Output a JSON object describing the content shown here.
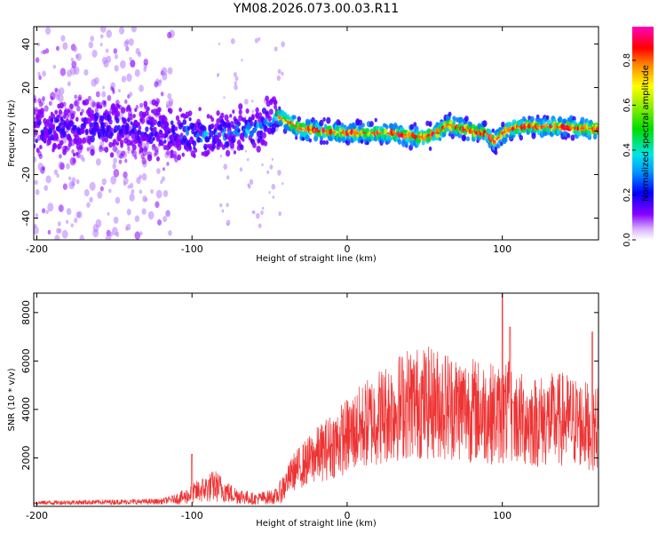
{
  "figure_title": "YM08.2026.073.00.03.R11",
  "colors": {
    "snr_line": "#ee3333",
    "axes": "#000000",
    "background": "#ffffff"
  },
  "chart_data": [
    {
      "type": "heatmap",
      "title": "YM08.2026.073.00.03.R11",
      "xlabel": "Height of straight line (km)",
      "ylabel": "Frequency (Hz)",
      "xlim": [
        -202,
        162
      ],
      "ylim": [
        -50,
        48
      ],
      "x_ticks": [
        -200,
        -100,
        0,
        100
      ],
      "y_ticks": [
        -40,
        -20,
        0,
        20,
        40
      ],
      "colorbar": {
        "label": "Normalized spectral amplitude",
        "range": [
          0.0,
          0.95
        ],
        "ticks": [
          "0.0",
          "0.2",
          "0.4",
          "0.6",
          "0.8"
        ],
        "colormap": "rainbow"
      },
      "ridge": {
        "description": "dominant frequency ridge",
        "x": [
          -200,
          -150,
          -110,
          -90,
          -60,
          -45,
          -40,
          -30,
          0,
          30,
          40,
          50,
          60,
          65,
          80,
          90,
          95,
          100,
          110,
          130,
          160
        ],
        "y": [
          1,
          2,
          -1,
          -2,
          1,
          7,
          5,
          1,
          -1,
          -1,
          -2,
          -3,
          0,
          3,
          0,
          -1,
          -5,
          -1,
          2,
          2,
          1
        ]
      }
    },
    {
      "type": "line",
      "xlabel": "Height of straight line (km)",
      "ylabel": "SNR (10 * v/v)",
      "xlim": [
        -202,
        162
      ],
      "ylim": [
        0,
        8800
      ],
      "x_ticks": [
        -200,
        -100,
        0,
        100
      ],
      "y_ticks": [
        2000,
        4000,
        6000,
        8000
      ],
      "series": [
        {
          "name": "SNR",
          "color": "#ee3333",
          "envelope_x": [
            -200,
            -150,
            -120,
            -105,
            -95,
            -85,
            -75,
            -60,
            -45,
            -35,
            -20,
            0,
            20,
            40,
            60,
            80,
            100,
            105,
            110,
            120,
            140,
            160
          ],
          "envelope_y": [
            150,
            180,
            200,
            380,
            650,
            850,
            520,
            300,
            420,
            1400,
            2100,
            2900,
            3700,
            4300,
            4250,
            4000,
            3750,
            3900,
            3600,
            3500,
            3600,
            3250
          ],
          "peaks": [
            {
              "x": -100,
              "y": 2150
            },
            {
              "x": 100,
              "y": 8800
            },
            {
              "x": 105,
              "y": 7400
            },
            {
              "x": 107,
              "y": 4300
            },
            {
              "x": 158,
              "y": 7200
            }
          ]
        }
      ]
    }
  ]
}
